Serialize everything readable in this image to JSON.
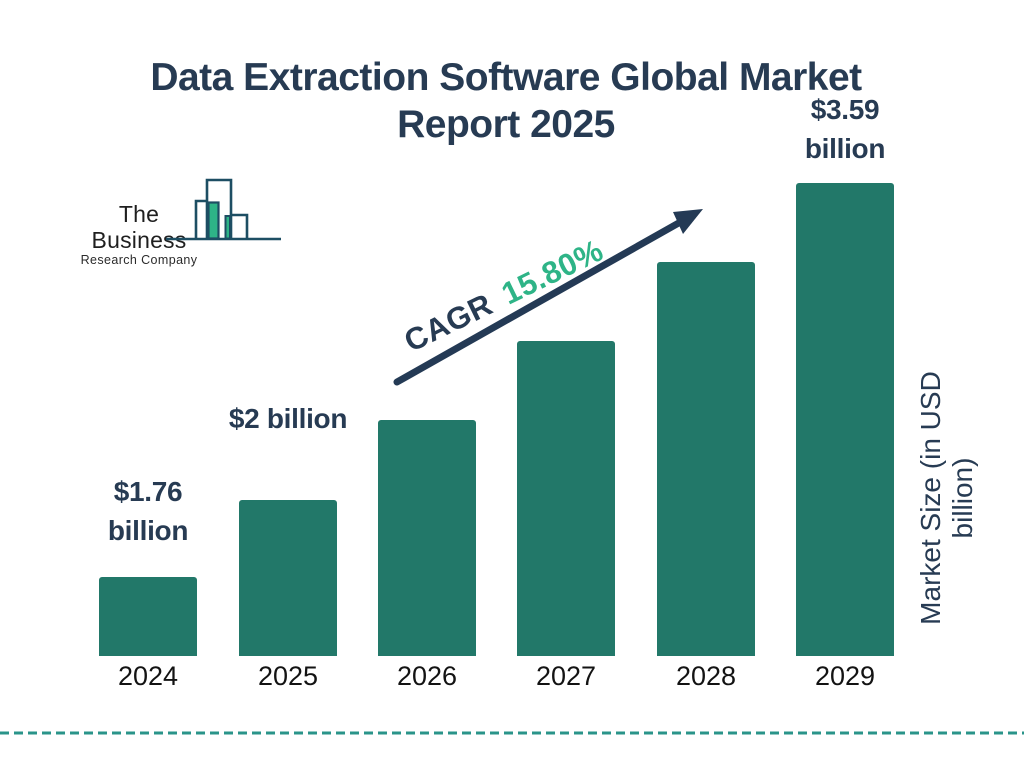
{
  "title": {
    "line1": "Data Extraction Software Global Market",
    "line2": "Report 2025"
  },
  "logo": {
    "name": "The Business",
    "tagline": "Research Company"
  },
  "cagr": {
    "prefix": "CAGR",
    "value": "15.80%"
  },
  "y_axis_label": "Market Size (in USD billion)",
  "colors": {
    "navy": "#273b53",
    "bar_teal": "#227869",
    "accent_green": "#2eb487",
    "arrow_navy": "#243a55",
    "dashed_teal": "#2a948a",
    "logo_outline": "#1d4e63"
  },
  "chart_data": {
    "type": "bar",
    "title": "Data Extraction Software Global Market Report 2025",
    "ylabel": "Market Size (in USD billion)",
    "cagr_percent": "15.80%",
    "categories": [
      "2024",
      "2025",
      "2026",
      "2027",
      "2028",
      "2029"
    ],
    "values": [
      1.76,
      2.0,
      2.32,
      2.68,
      3.1,
      3.59
    ],
    "legend": "none",
    "grid": "off",
    "bars": [
      {
        "year": "2024",
        "value": 1.76,
        "label_lines": [
          "$1.76",
          "billion"
        ]
      },
      {
        "year": "2025",
        "value": 2.0,
        "label_lines": [
          "$2 billion"
        ]
      },
      {
        "year": "2026",
        "value": 2.32,
        "label_lines": []
      },
      {
        "year": "2027",
        "value": 2.68,
        "label_lines": []
      },
      {
        "year": "2028",
        "value": 3.1,
        "label_lines": []
      },
      {
        "year": "2029",
        "value": 3.59,
        "label_lines": [
          "$3.59",
          "billion"
        ]
      }
    ]
  }
}
